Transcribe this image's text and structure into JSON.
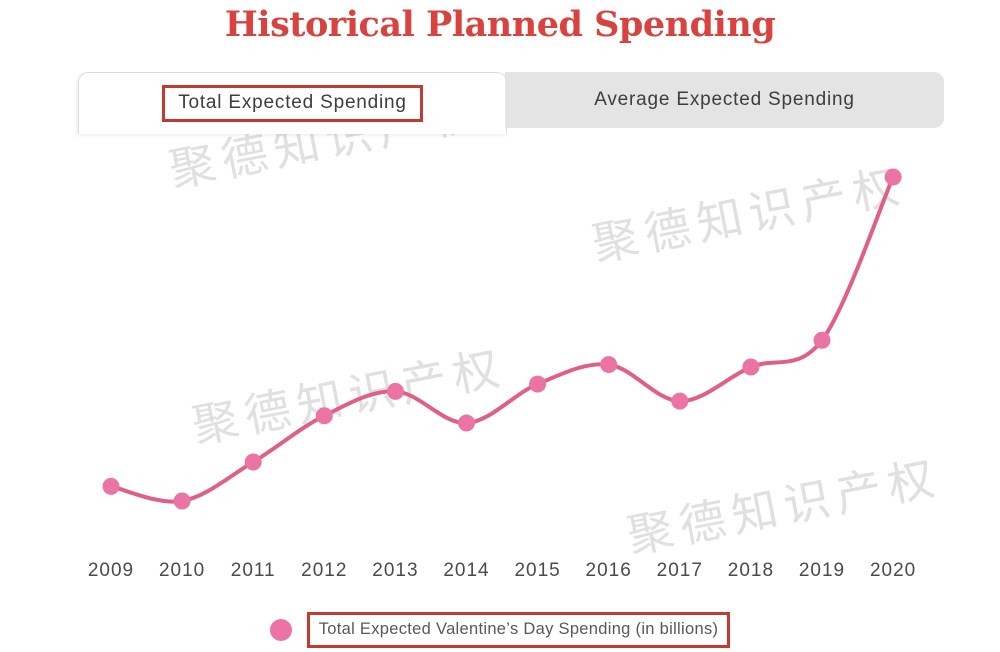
{
  "page": {
    "title": "Historical Planned Spending"
  },
  "tabs": [
    {
      "label": "Total Expected Spending",
      "state": "active",
      "annotated": true
    },
    {
      "label": "Average Expected Spending",
      "state": "inactive",
      "annotated": false
    }
  ],
  "legend": {
    "label": "Total Expected Valentine’s Day Spending (in billions)"
  },
  "watermark": {
    "text": "聚德知识产权"
  },
  "colors": {
    "title_red": "#d8423f",
    "annotation_red": "#c23b33",
    "line_pink": "#e05f85",
    "marker_pink": "#ec74a4",
    "tab_inactive_gray": "#e4e4e4",
    "watermark_gray": "#e0e0e0"
  },
  "chart_data": {
    "type": "line",
    "x": [
      2009,
      2010,
      2011,
      2012,
      2013,
      2014,
      2015,
      2016,
      2017,
      2018,
      2019,
      2020
    ],
    "series": [
      {
        "name": "Total Expected Valentine’s Day Spending (in billions)",
        "values": [
          14.7,
          14.1,
          15.7,
          17.6,
          18.6,
          17.3,
          18.9,
          19.7,
          18.2,
          19.6,
          20.7,
          27.4
        ]
      }
    ],
    "title": "Historical Planned Spending",
    "xlabel": "",
    "ylabel": "",
    "ylim": [
      13.5,
      28.5
    ],
    "y_axis_visible": false,
    "grid": false,
    "legend_position": "bottom",
    "smooth": true
  }
}
